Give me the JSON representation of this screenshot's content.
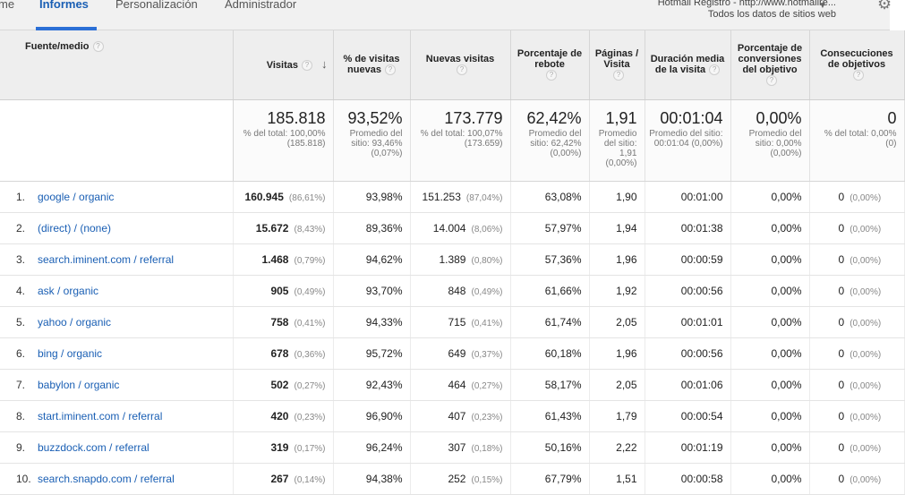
{
  "nav": {
    "tabs": [
      {
        "label": "me"
      },
      {
        "label": "Informes"
      },
      {
        "label": "Personalización"
      },
      {
        "label": "Administrador"
      }
    ],
    "account_line1": "Hotmail Registro - http://www.hotmailre...",
    "account_line2": "Todos los datos de sitios web"
  },
  "table": {
    "headers": {
      "source": "Fuente/medio",
      "visits": "Visitas",
      "pct_new": "% de visitas nuevas",
      "new_visits": "Nuevas visitas",
      "bounce": "Porcentaje de rebote",
      "pages": "Páginas / Visita",
      "duration": "Duración media de la visita",
      "conv": "Porcentaje de conversiones del objetivo",
      "goals": "Consecuciones de objetivos"
    },
    "totals": {
      "visits": "185.818",
      "visits_sub": "% del total: 100,00% (185.818)",
      "pct_new": "93,52%",
      "pct_new_sub": "Promedio del sitio: 93,46% (0,07%)",
      "new_visits": "173.779",
      "new_visits_sub": "% del total: 100,07% (173.659)",
      "bounce": "62,42%",
      "bounce_sub": "Promedio del sitio: 62,42% (0,00%)",
      "pages": "1,91",
      "pages_sub": "Promedio del sitio: 1,91 (0,00%)",
      "duration": "00:01:04",
      "duration_sub": "Promedio del sitio: 00:01:04 (0,00%)",
      "conv": "0,00%",
      "conv_sub": "Promedio del sitio: 0,00% (0,00%)",
      "goals": "0",
      "goals_sub": "% del total: 0,00% (0)"
    },
    "rows": [
      {
        "idx": "1.",
        "source": "google / organic",
        "visits": "160.945",
        "visits_pct": "(86,61%)",
        "pct_new": "93,98%",
        "new_visits": "151.253",
        "new_pct": "(87,04%)",
        "bounce": "63,08%",
        "pages": "1,90",
        "duration": "00:01:00",
        "conv": "0,00%",
        "goals": "0",
        "goals_pct": "(0,00%)"
      },
      {
        "idx": "2.",
        "source": "(direct) / (none)",
        "visits": "15.672",
        "visits_pct": "(8,43%)",
        "pct_new": "89,36%",
        "new_visits": "14.004",
        "new_pct": "(8,06%)",
        "bounce": "57,97%",
        "pages": "1,94",
        "duration": "00:01:38",
        "conv": "0,00%",
        "goals": "0",
        "goals_pct": "(0,00%)"
      },
      {
        "idx": "3.",
        "source": "search.iminent.com / referral",
        "visits": "1.468",
        "visits_pct": "(0,79%)",
        "pct_new": "94,62%",
        "new_visits": "1.389",
        "new_pct": "(0,80%)",
        "bounce": "57,36%",
        "pages": "1,96",
        "duration": "00:00:59",
        "conv": "0,00%",
        "goals": "0",
        "goals_pct": "(0,00%)"
      },
      {
        "idx": "4.",
        "source": "ask / organic",
        "visits": "905",
        "visits_pct": "(0,49%)",
        "pct_new": "93,70%",
        "new_visits": "848",
        "new_pct": "(0,49%)",
        "bounce": "61,66%",
        "pages": "1,92",
        "duration": "00:00:56",
        "conv": "0,00%",
        "goals": "0",
        "goals_pct": "(0,00%)"
      },
      {
        "idx": "5.",
        "source": "yahoo / organic",
        "visits": "758",
        "visits_pct": "(0,41%)",
        "pct_new": "94,33%",
        "new_visits": "715",
        "new_pct": "(0,41%)",
        "bounce": "61,74%",
        "pages": "2,05",
        "duration": "00:01:01",
        "conv": "0,00%",
        "goals": "0",
        "goals_pct": "(0,00%)"
      },
      {
        "idx": "6.",
        "source": "bing / organic",
        "visits": "678",
        "visits_pct": "(0,36%)",
        "pct_new": "95,72%",
        "new_visits": "649",
        "new_pct": "(0,37%)",
        "bounce": "60,18%",
        "pages": "1,96",
        "duration": "00:00:56",
        "conv": "0,00%",
        "goals": "0",
        "goals_pct": "(0,00%)"
      },
      {
        "idx": "7.",
        "source": "babylon / organic",
        "visits": "502",
        "visits_pct": "(0,27%)",
        "pct_new": "92,43%",
        "new_visits": "464",
        "new_pct": "(0,27%)",
        "bounce": "58,17%",
        "pages": "2,05",
        "duration": "00:01:06",
        "conv": "0,00%",
        "goals": "0",
        "goals_pct": "(0,00%)"
      },
      {
        "idx": "8.",
        "source": "start.iminent.com / referral",
        "visits": "420",
        "visits_pct": "(0,23%)",
        "pct_new": "96,90%",
        "new_visits": "407",
        "new_pct": "(0,23%)",
        "bounce": "61,43%",
        "pages": "1,79",
        "duration": "00:00:54",
        "conv": "0,00%",
        "goals": "0",
        "goals_pct": "(0,00%)"
      },
      {
        "idx": "9.",
        "source": "buzzdock.com / referral",
        "visits": "319",
        "visits_pct": "(0,17%)",
        "pct_new": "96,24%",
        "new_visits": "307",
        "new_pct": "(0,18%)",
        "bounce": "50,16%",
        "pages": "2,22",
        "duration": "00:01:19",
        "conv": "0,00%",
        "goals": "0",
        "goals_pct": "(0,00%)"
      },
      {
        "idx": "10.",
        "source": "search.snapdo.com / referral",
        "visits": "267",
        "visits_pct": "(0,14%)",
        "pct_new": "94,38%",
        "new_visits": "252",
        "new_pct": "(0,15%)",
        "bounce": "67,79%",
        "pages": "1,51",
        "duration": "00:00:58",
        "conv": "0,00%",
        "goals": "0",
        "goals_pct": "(0,00%)"
      }
    ]
  }
}
